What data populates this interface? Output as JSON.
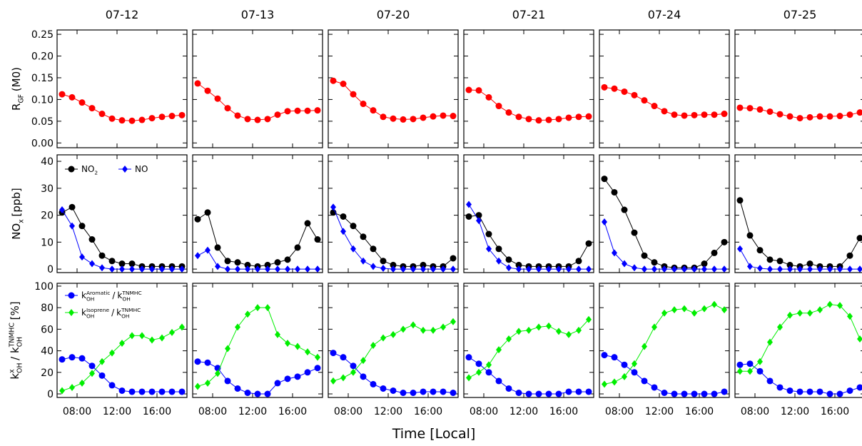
{
  "chart_data": {
    "type": "line",
    "xlabel": "Time [Local]",
    "days": [
      "07-12",
      "07-13",
      "07-20",
      "07-21",
      "07-24",
      "07-25"
    ],
    "x": [
      6.5,
      7.5,
      8.5,
      9.5,
      10.5,
      11.5,
      12.5,
      13.5,
      14.5,
      15.5,
      16.5,
      17.5,
      18.5
    ],
    "xlim": [
      6,
      19
    ],
    "xticks": [
      {
        "value": 8,
        "label": "08:00"
      },
      {
        "value": 12,
        "label": "12:00"
      },
      {
        "value": 16,
        "label": "16:00"
      }
    ],
    "rows": [
      {
        "ylabel": [
          {
            "t": "R"
          },
          {
            "t": "GF",
            "pos": "sub"
          },
          {
            "t": "(M0)"
          }
        ],
        "ylim": [
          -0.011,
          0.26
        ],
        "yticks": [
          {
            "value": 0,
            "label": "0.00"
          },
          {
            "value": 0.05,
            "label": "0.05"
          },
          {
            "value": 0.1,
            "label": "0.10"
          },
          {
            "value": 0.15,
            "label": "0.15"
          },
          {
            "value": 0.2,
            "label": "0.20"
          },
          {
            "value": 0.25,
            "label": "0.25"
          }
        ],
        "series": [
          {
            "color": "#ff0000",
            "marker": "circle",
            "values": [
              [
                0.112,
                0.105,
                0.093,
                0.08,
                0.067,
                0.056,
                0.052,
                0.051,
                0.053,
                0.057,
                0.06,
                0.062,
                0.064
              ],
              [
                0.137,
                0.12,
                0.102,
                0.08,
                0.063,
                0.055,
                0.053,
                0.055,
                0.065,
                0.073,
                0.074,
                0.074,
                0.075
              ],
              [
                0.143,
                0.136,
                0.112,
                0.09,
                0.075,
                0.06,
                0.056,
                0.054,
                0.055,
                0.058,
                0.061,
                0.063,
                0.062
              ],
              [
                0.122,
                0.121,
                0.105,
                0.085,
                0.07,
                0.06,
                0.055,
                0.052,
                0.053,
                0.055,
                0.058,
                0.06,
                0.061
              ],
              [
                0.128,
                0.125,
                0.118,
                0.11,
                0.098,
                0.085,
                0.073,
                0.065,
                0.063,
                0.064,
                0.065,
                0.065,
                0.067
              ],
              [
                0.081,
                0.08,
                0.077,
                0.072,
                0.066,
                0.061,
                0.057,
                0.059,
                0.061,
                0.061,
                0.062,
                0.065,
                0.07
              ]
            ]
          }
        ]
      },
      {
        "ylabel": [
          {
            "t": "NO"
          },
          {
            "t": "x",
            "pos": "sub"
          },
          {
            "t": "[ppb]"
          }
        ],
        "ylim": [
          -1.3,
          42.4
        ],
        "yticks": [
          0,
          10,
          20,
          30,
          40
        ],
        "legend": "row",
        "series": [
          {
            "name": [
              {
                "t": "NO"
              },
              {
                "t": "2",
                "pos": "sub"
              }
            ],
            "color": "#000000",
            "marker": "circle",
            "values": [
              [
                21,
                23,
                16,
                11,
                5,
                3,
                2,
                2,
                1,
                1,
                1,
                1,
                1
              ],
              [
                18.5,
                21,
                8,
                3,
                2.5,
                1.5,
                1,
                1.5,
                2.5,
                3.5,
                8,
                17,
                11
              ],
              [
                21,
                19.5,
                16,
                12,
                7.5,
                3,
                1.5,
                1,
                1,
                1.5,
                1,
                1,
                4
              ],
              [
                19.5,
                20,
                13,
                7.5,
                3.5,
                1.5,
                1,
                1,
                1,
                1,
                1,
                3,
                9.5
              ],
              [
                33.5,
                28.5,
                22,
                13.5,
                5,
                2.5,
                1,
                0.5,
                0.5,
                0.5,
                2,
                6,
                10
              ],
              [
                25.5,
                12.5,
                7,
                3.5,
                3,
                1.5,
                1,
                2,
                1,
                1,
                1,
                5,
                11.5
              ]
            ]
          },
          {
            "name": [
              {
                "t": "NO"
              }
            ],
            "color": "#0000ff",
            "marker": "diamond",
            "values": [
              [
                22,
                16,
                4.5,
                2,
                0.5,
                0,
                0,
                0,
                0,
                0,
                0,
                0,
                0
              ],
              [
                5,
                7,
                1,
                0,
                0,
                0,
                0,
                0,
                0,
                0,
                0,
                0,
                0
              ],
              [
                23,
                14,
                7.5,
                3,
                1,
                0.3,
                0,
                0,
                0,
                0,
                0,
                0,
                0
              ],
              [
                24,
                18,
                7.5,
                3,
                0.5,
                0,
                0,
                0,
                0,
                0,
                0,
                0,
                0
              ],
              [
                17.5,
                6,
                2,
                0.5,
                0,
                0,
                0,
                0,
                0,
                0,
                0,
                0,
                0
              ],
              [
                7.5,
                1,
                0.3,
                0,
                0,
                0,
                0,
                0,
                0,
                0,
                0,
                0,
                0
              ]
            ]
          }
        ]
      },
      {
        "ylabel": [
          {
            "t": "k"
          },
          {
            "t": "x",
            "pos": "sup"
          },
          {
            "t": "OH",
            "pos": "sub"
          },
          {
            "t": "/ k"
          },
          {
            "t": "TNMHC",
            "pos": "sup"
          },
          {
            "t": "OH",
            "pos": "sub"
          },
          {
            "t": "[%]"
          }
        ],
        "ylim": [
          -3.3,
          102.6
        ],
        "yticks": [
          0,
          20,
          40,
          60,
          80,
          100
        ],
        "legend": "column",
        "series": [
          {
            "name": [
              {
                "t": "k"
              },
              {
                "t": "Aromatic",
                "pos": "sup"
              },
              {
                "t": "OH",
                "pos": "sub"
              },
              {
                "t": "/"
              },
              {
                "t": "k"
              },
              {
                "t": "TNMHC",
                "pos": "sup"
              },
              {
                "t": "OH",
                "pos": "sub"
              }
            ],
            "color": "#0000ff",
            "marker": "circle",
            "values": [
              [
                32,
                34,
                33,
                26,
                17,
                8,
                3,
                2,
                2,
                2,
                2,
                2,
                2
              ],
              [
                30,
                29,
                24,
                12,
                5,
                1,
                0,
                0,
                10,
                14,
                16,
                20,
                24
              ],
              [
                38,
                34,
                26,
                16,
                9,
                5,
                3,
                1,
                1,
                2,
                2,
                2,
                1
              ],
              [
                34,
                28,
                20,
                12,
                5,
                1,
                0,
                0,
                0,
                0,
                2,
                2,
                2
              ],
              [
                36,
                34,
                27,
                20,
                12,
                6,
                1,
                0,
                0,
                0,
                0,
                0,
                2
              ],
              [
                27,
                28,
                21,
                12,
                6,
                3,
                2,
                2,
                2,
                0,
                0,
                3,
                6
              ]
            ]
          },
          {
            "name": [
              {
                "t": "k"
              },
              {
                "t": "Isoprene",
                "pos": "sup"
              },
              {
                "t": "OH",
                "pos": "sub"
              },
              {
                "t": "/"
              },
              {
                "t": "k"
              },
              {
                "t": "TNMHC",
                "pos": "sup"
              },
              {
                "t": "OH",
                "pos": "sub"
              }
            ],
            "color": "#00ee00",
            "marker": "diamond",
            "values": [
              [
                3,
                6,
                10,
                19,
                30,
                38,
                47,
                54,
                54,
                50,
                52,
                57,
                62
              ],
              [
                7,
                10,
                19,
                42,
                62,
                74,
                80,
                80,
                55,
                47,
                44,
                39,
                34
              ],
              [
                12,
                15,
                20,
                31,
                45,
                52,
                55,
                60,
                64,
                59,
                59,
                62,
                67
              ],
              [
                15,
                20,
                27,
                41,
                51,
                58,
                59,
                62,
                63,
                58,
                55,
                59,
                69
              ],
              [
                9,
                11,
                16,
                28,
                44,
                62,
                75,
                78,
                79,
                75,
                79,
                83,
                78
              ],
              [
                21,
                21,
                30,
                48,
                62,
                73,
                75,
                75,
                78,
                83,
                82,
                72,
                51
              ]
            ]
          }
        ]
      }
    ]
  }
}
